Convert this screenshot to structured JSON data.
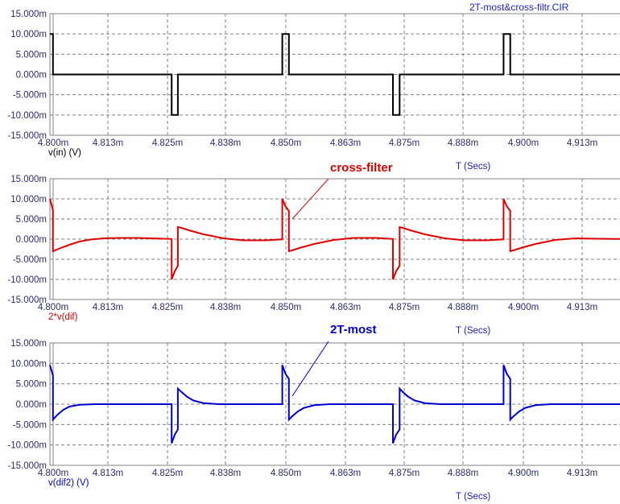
{
  "window_title": "2T-most&cross-filtr.CIR",
  "colors": {
    "grid": "#808080",
    "frame": "#808080",
    "tick_text": "#2b2b6b",
    "xlabel_text": "#2020c0"
  },
  "chart_data": [
    {
      "type": "line",
      "ylabel": "v(in) (V)",
      "xlabel": "T (Secs)",
      "color": "#000000",
      "xlim": [
        4.7968,
        4.9256
      ],
      "ylim": [
        -15,
        15
      ],
      "grid": true,
      "x_ticks": [
        "4.800m",
        "4.813m",
        "4.825m",
        "4.838m",
        "4.850m",
        "4.863m",
        "4.875m",
        "4.888m",
        "4.900m",
        "4.913m"
      ],
      "y_ticks": [
        "15.000m",
        "10.000m",
        "5.000m",
        "0.000m",
        "-5.000m",
        "-10.000m",
        "-15.000m"
      ],
      "series": [
        {
          "x": [
            4.7968,
            4.7975,
            4.7975,
            4.8008,
            4.8008,
            4.8243,
            4.8243,
            4.8257,
            4.8257,
            4.8493,
            4.8493,
            4.8508,
            4.8508,
            4.8743,
            4.8743,
            4.8758,
            4.8758,
            4.8993,
            4.8993,
            4.9008,
            4.9008,
            4.9256
          ],
          "y": [
            10,
            10,
            0,
            0,
            0,
            0,
            -10,
            -10,
            0,
            0,
            10,
            10,
            0,
            0,
            -10,
            -10,
            0,
            0,
            10,
            10,
            0,
            0
          ]
        }
      ]
    },
    {
      "type": "line",
      "ylabel": "2*v(dif)",
      "xlabel": "T (Secs)",
      "color": "#e00000",
      "xlim": [
        4.7968,
        4.9256
      ],
      "ylim": [
        -15,
        15
      ],
      "grid": true,
      "annotation": "cross-filter",
      "x_ticks": [
        "4.800m",
        "4.813m",
        "4.825m",
        "4.838m",
        "4.850m",
        "4.863m",
        "4.875m",
        "4.888m",
        "4.900m",
        "4.913m"
      ],
      "y_ticks": [
        "15.000m",
        "10.000m",
        "5.000m",
        "0.000m",
        "-5.000m",
        "-10.000m",
        "-15.000m"
      ],
      "series": [
        {
          "x": [
            4.7968,
            4.7975,
            4.7975,
            4.7995,
            4.8015,
            4.8035,
            4.806,
            4.809,
            4.8125,
            4.8165,
            4.821,
            4.8243,
            4.8243,
            4.825,
            4.8257,
            4.8257,
            4.8265,
            4.8285,
            4.8315,
            4.836,
            4.8405,
            4.8455,
            4.8493,
            4.8493,
            4.85,
            4.8508,
            4.8508,
            4.8515,
            4.8535,
            4.8565,
            4.861,
            4.8655,
            4.8705,
            4.8743,
            4.8743,
            4.875,
            4.8758,
            4.8758,
            4.8765,
            4.8785,
            4.8815,
            4.886,
            4.8905,
            4.8955,
            4.8993,
            4.8993,
            4.9,
            4.9008,
            4.9008,
            4.9015,
            4.9035,
            4.9065,
            4.911,
            4.9155,
            4.92,
            4.9256
          ],
          "y": [
            10,
            7.2,
            -3,
            -2.1,
            -1.3,
            -0.6,
            -0.1,
            0.2,
            0.3,
            0.3,
            0.15,
            0.05,
            -10,
            -8,
            -6.6,
            3,
            2.8,
            2.1,
            1.2,
            0.2,
            -0.3,
            -0.3,
            -0.05,
            10,
            8.2,
            7,
            -3,
            -2.8,
            -2.1,
            -1.2,
            -0.2,
            0.3,
            0.3,
            0.05,
            -10,
            -8,
            -6.6,
            3,
            2.8,
            2.1,
            1.2,
            0.2,
            -0.3,
            -0.3,
            -0.05,
            10,
            8.2,
            7,
            -3,
            -2.8,
            -2.1,
            -1.2,
            -0.2,
            0.2,
            0.1,
            0.05
          ]
        }
      ]
    },
    {
      "type": "line",
      "ylabel": "v(dif2) (V)",
      "xlabel": "T (Secs)",
      "color": "#0000d0",
      "xlim": [
        4.7968,
        4.9256
      ],
      "ylim": [
        -15,
        15
      ],
      "grid": true,
      "annotation": "2T-most",
      "x_ticks": [
        "4.800m",
        "4.813m",
        "4.825m",
        "4.838m",
        "4.850m",
        "4.863m",
        "4.875m",
        "4.888m",
        "4.900m",
        "4.913m"
      ],
      "y_ticks": [
        "15.000m",
        "10.000m",
        "5.000m",
        "0.000m",
        "-5.000m",
        "-10.000m",
        "-15.000m"
      ],
      "series": [
        {
          "x": [
            4.7968,
            4.7975,
            4.7975,
            4.7985,
            4.7998,
            4.8012,
            4.8035,
            4.807,
            4.8243,
            4.8243,
            4.825,
            4.8257,
            4.8257,
            4.8265,
            4.8278,
            4.8292,
            4.8315,
            4.835,
            4.8493,
            4.8493,
            4.85,
            4.8508,
            4.8508,
            4.8515,
            4.8528,
            4.8542,
            4.8565,
            4.86,
            4.8743,
            4.8743,
            4.875,
            4.8758,
            4.8758,
            4.8765,
            4.8778,
            4.8792,
            4.8815,
            4.885,
            4.8993,
            4.8993,
            4.9,
            4.9008,
            4.9008,
            4.9015,
            4.9028,
            4.9042,
            4.9065,
            4.91,
            4.9256
          ],
          "y": [
            9.6,
            7,
            -3.8,
            -2.6,
            -1.4,
            -0.6,
            -0.15,
            0,
            0,
            -9.6,
            -7.5,
            -6.2,
            3.8,
            3,
            1.8,
            0.9,
            0.25,
            0,
            0,
            9.6,
            7.5,
            6.2,
            -3.8,
            -3,
            -1.8,
            -0.9,
            -0.25,
            0,
            0,
            -9.6,
            -7.5,
            -6.2,
            3.8,
            3,
            1.8,
            0.9,
            0.25,
            0,
            0,
            9.6,
            7.5,
            6.2,
            -3.8,
            -3,
            -1.8,
            -0.9,
            -0.25,
            0,
            0
          ]
        }
      ]
    }
  ]
}
